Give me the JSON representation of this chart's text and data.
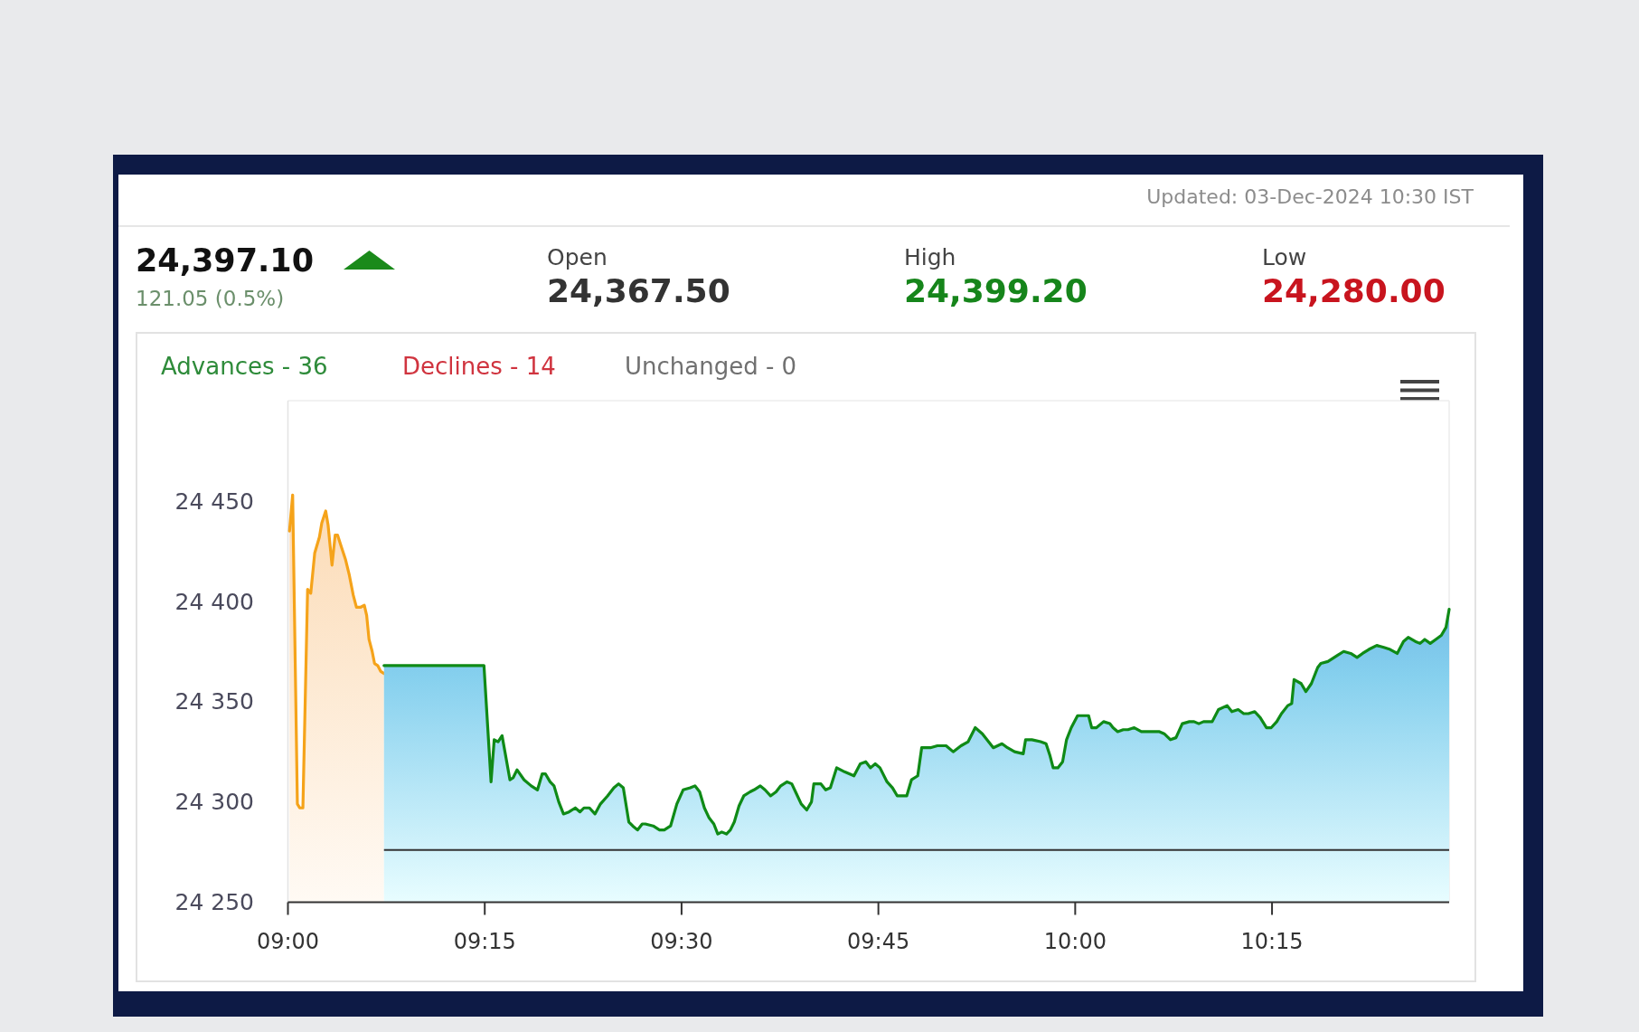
{
  "chart_data": {
    "type": "area",
    "annotations": [
      "Updated: 03-Dec-2024 10:30 IST",
      "24,397.10",
      "121.05 (0.5%)",
      "Open",
      "24,367.50",
      "High",
      "24,399.20",
      "Low",
      "24,280.00",
      "Advances - 36",
      "Declines - 14",
      "Unchanged - 0"
    ],
    "xlim": [
      9,
      10.475
    ],
    "xticks": [
      {
        "value": 9,
        "label": "09:00"
      },
      {
        "value": 9.25,
        "label": "09:15"
      },
      {
        "value": 9.5,
        "label": "09:30"
      },
      {
        "value": 9.75,
        "label": "09:45"
      },
      {
        "value": 10,
        "label": "10:00"
      },
      {
        "value": 10.25,
        "label": "10:15"
      }
    ],
    "ylim": [
      24250,
      24500
    ],
    "yticks": [
      {
        "value": 24250,
        "label": "24 250"
      },
      {
        "value": 24300,
        "label": "24 300"
      },
      {
        "value": 24350,
        "label": "24 350"
      },
      {
        "value": 24400,
        "label": "24 400"
      },
      {
        "value": 24450,
        "label": "24 450"
      }
    ],
    "series": [
      {
        "color": "#f5a31a",
        "x": [
          9.002,
          9.006,
          9.012,
          9.015,
          9.019,
          9.025,
          9.029,
          9.034,
          9.04,
          9.043,
          9.048,
          9.051,
          9.056,
          9.06,
          9.063,
          9.068,
          9.073,
          9.078,
          9.083,
          9.087,
          9.092,
          9.097,
          9.1,
          9.103,
          9.107,
          9.11,
          9.114,
          9.118,
          9.122
        ],
        "values": [
          24435,
          24453,
          24299,
          24297,
          24297,
          24406,
          24404,
          24424,
          24432,
          24439,
          24445,
          24438,
          24418,
          24433,
          24433,
          24427,
          24421,
          24413,
          24403,
          24397,
          24397,
          24398,
          24393,
          24381,
          24375,
          24369,
          24368,
          24365,
          24364
        ]
      },
      {
        "color": "#0f8a16",
        "x": [
          9.122,
          9.249,
          9.258,
          9.262,
          9.267,
          9.272,
          9.282,
          9.286,
          9.291,
          9.3,
          9.309,
          9.317,
          9.323,
          9.327,
          9.333,
          9.338,
          9.344,
          9.35,
          9.357,
          9.365,
          9.371,
          9.376,
          9.383,
          9.39,
          9.397,
          9.406,
          9.414,
          9.42,
          9.426,
          9.433,
          9.438,
          9.444,
          9.45,
          9.454,
          9.464,
          9.472,
          9.478,
          9.486,
          9.494,
          9.502,
          9.511,
          9.517,
          9.523,
          9.529,
          9.535,
          9.541,
          9.546,
          9.551,
          9.557,
          9.562,
          9.567,
          9.573,
          9.579,
          9.587,
          9.592,
          9.6,
          9.606,
          9.613,
          9.62,
          9.626,
          9.634,
          9.64,
          9.646,
          9.652,
          9.659,
          9.665,
          9.668,
          9.677,
          9.683,
          9.689,
          9.697,
          9.707,
          9.719,
          9.727,
          9.734,
          9.74,
          9.746,
          9.752,
          9.761,
          9.768,
          9.774,
          9.786,
          9.792,
          9.8,
          9.805,
          9.816,
          9.825,
          9.836,
          9.845,
          9.855,
          9.864,
          9.873,
          9.882,
          9.896,
          9.907,
          9.914,
          9.923,
          9.934,
          9.937,
          9.945,
          9.956,
          9.963,
          9.968,
          9.972,
          9.978,
          9.984,
          9.989,
          9.995,
          10.003,
          10.01,
          10.017,
          10.021,
          10.027,
          10.036,
          10.044,
          10.048,
          10.054,
          10.061,
          10.067,
          10.075,
          10.084,
          10.092,
          10.101,
          10.107,
          10.113,
          10.121,
          10.128,
          10.136,
          10.145,
          10.151,
          10.157,
          10.163,
          10.174,
          10.182,
          10.193,
          10.199,
          10.207,
          10.214,
          10.22,
          10.228,
          10.235,
          10.243,
          10.249,
          10.256,
          10.262,
          10.27,
          10.275,
          10.278,
          10.287,
          10.293,
          10.3,
          10.308,
          10.312,
          10.321,
          10.333,
          10.341,
          10.35,
          10.358,
          10.365,
          10.373,
          10.383,
          10.392,
          10.4,
          10.409,
          10.417,
          10.423,
          10.432,
          10.438,
          10.444,
          10.451,
          10.458,
          10.465,
          10.471,
          10.475
        ],
        "values": [
          24368,
          24368,
          24310,
          24331,
          24330,
          24333,
          24311,
          24312,
          24316,
          24311,
          24308,
          24306,
          24314,
          24314,
          24310,
          24308,
          24300,
          24294,
          24295,
          24297,
          24295,
          24297,
          24297,
          24294,
          24299,
          24303,
          24307,
          24309,
          24307,
          24290,
          24288,
          24286,
          24289,
          24289,
          24288,
          24286,
          24286,
          24288,
          24299,
          24306,
          24307,
          24308,
          24305,
          24297,
          24292,
          24289,
          24284,
          24285,
          24284,
          24286,
          24290,
          24298,
          24303,
          24305,
          24306,
          24308,
          24306,
          24303,
          24305,
          24308,
          24310,
          24309,
          24304,
          24299,
          24296,
          24300,
          24309,
          24309,
          24306,
          24307,
          24317,
          24315,
          24313,
          24319,
          24320,
          24317,
          24319,
          24317,
          24310,
          24307,
          24303,
          24303,
          24311,
          24313,
          24327,
          24327,
          24328,
          24328,
          24325,
          24328,
          24330,
          24337,
          24334,
          24327,
          24329,
          24327,
          24325,
          24324,
          24331,
          24331,
          24330,
          24329,
          24323,
          24317,
          24317,
          24320,
          24331,
          24337,
          24343,
          24343,
          24343,
          24337,
          24337,
          24340,
          24339,
          24337,
          24335,
          24336,
          24336,
          24337,
          24335,
          24335,
          24335,
          24335,
          24334,
          24331,
          24332,
          24339,
          24340,
          24340,
          24339,
          24340,
          24340,
          24346,
          24348,
          24345,
          24346,
          24344,
          24344,
          24345,
          24342,
          24337,
          24337,
          24340,
          24344,
          24348,
          24349,
          24361,
          24359,
          24355,
          24359,
          24367,
          24369,
          24370,
          24373,
          24375,
          24374,
          24372,
          24374,
          24376,
          24378,
          24377,
          24376,
          24374,
          24380,
          24382,
          24380,
          24379,
          24381,
          24379,
          24381,
          24383,
          24387,
          24396
        ]
      },
      {
        "type": "line",
        "color": "#333333",
        "x": [
          9.122,
          10.475
        ],
        "values": [
          24276,
          24276
        ]
      }
    ]
  }
}
